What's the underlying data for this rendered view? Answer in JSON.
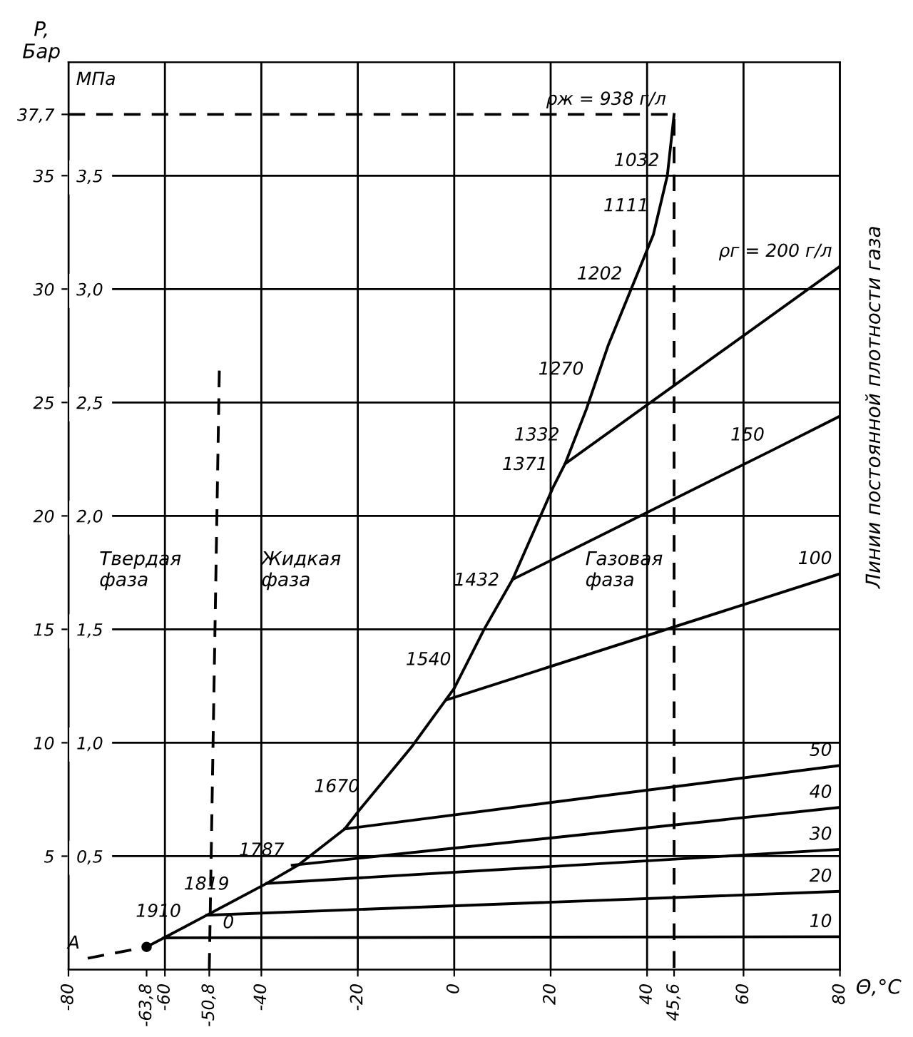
{
  "chart_data": {
    "type": "line",
    "xlabel": "Θ,°C",
    "ylabel": "P,\nБар",
    "y2label": "МПа",
    "xlim": [
      -80,
      80
    ],
    "ylim": [
      0,
      40
    ],
    "y2lim": [
      0,
      4.0
    ],
    "xticks": [
      -80,
      {
        "value": -63.8,
        "label": "-63,8"
      },
      -60,
      {
        "value": -50.8,
        "label": "-50,8"
      },
      -40,
      -20,
      0,
      20,
      40,
      {
        "value": 45.6,
        "label": "45,6"
      },
      60,
      80
    ],
    "yticks": [
      5,
      10,
      15,
      20,
      25,
      30,
      35,
      {
        "value": 37.7,
        "label": "37,7"
      }
    ],
    "y2ticks": [
      {
        "value": 0.5,
        "label": "0,5"
      },
      {
        "value": 1.0,
        "label": "1,0"
      },
      {
        "value": 1.5,
        "label": "1,5"
      },
      {
        "value": 2.0,
        "label": "2,0"
      },
      {
        "value": 2.5,
        "label": "2,5"
      },
      {
        "value": 3.0,
        "label": "3,0"
      },
      {
        "value": 3.5,
        "label": "3,5"
      }
    ],
    "grid": true,
    "series": [
      {
        "color": "#000000",
        "line_style": "solid",
        "x": [
          -63.8,
          -60.2,
          -51.3,
          -38.9,
          -32.4,
          -22.7,
          -19.8,
          -8.9,
          0,
          6.2,
          12.1,
          20.6,
          23,
          27.4,
          31.9,
          41.3,
          44.2,
          45.6
        ],
        "values": [
          1.0,
          1.4,
          2.4,
          3.8,
          4.6,
          6.2,
          7.0,
          9.8,
          12.4,
          15.0,
          17.2,
          21.3,
          22.3,
          24.7,
          27.5,
          32.4,
          35.0,
          37.7
        ]
      },
      {
        "color": "#000000",
        "line_style": "dashed",
        "x": [
          -76,
          -63.8
        ],
        "values": [
          0.5,
          1.0
        ]
      },
      {
        "type": "scatter",
        "marker": "circle",
        "color": "#000000",
        "x": [
          -63.8
        ],
        "values": [
          1.0
        ]
      },
      {
        "color": "#000000",
        "line_style": "dashed",
        "x": [
          -50.8,
          -48.7
        ],
        "values": [
          0,
          26.6
        ]
      },
      {
        "color": "#000000",
        "line_style": "dashed",
        "x": [
          -80,
          45.6,
          45.6
        ],
        "values": [
          37.7,
          37.7,
          0
        ]
      },
      {
        "color": "#000000",
        "line_style": "solid",
        "x": [
          -60.2,
          80
        ],
        "values": [
          1.4,
          1.45
        ]
      },
      {
        "color": "#000000",
        "line_style": "solid",
        "x": [
          -51.3,
          80
        ],
        "values": [
          2.4,
          3.45
        ]
      },
      {
        "color": "#000000",
        "line_style": "solid",
        "x": [
          -38.9,
          80
        ],
        "values": [
          3.8,
          5.3
        ]
      },
      {
        "color": "#000000",
        "line_style": "solid",
        "x": [
          -33.6,
          80
        ],
        "values": [
          4.6,
          7.15
        ]
      },
      {
        "color": "#000000",
        "line_style": "solid",
        "x": [
          -22.7,
          80
        ],
        "values": [
          6.2,
          9.0
        ]
      },
      {
        "color": "#000000",
        "line_style": "solid",
        "x": [
          -1.5,
          80
        ],
        "values": [
          11.9,
          17.45
        ]
      },
      {
        "color": "#000000",
        "line_style": "solid",
        "x": [
          12.1,
          66,
          80
        ],
        "values": [
          17.2,
          22.9,
          24.4
        ]
      },
      {
        "color": "#000000",
        "line_style": "solid",
        "x": [
          23,
          80
        ],
        "values": [
          22.3,
          31.0
        ]
      }
    ],
    "annotations": [
      "Линии постоянной плотности газа",
      "Твердая\nфаза",
      "Жидкая\nфаза",
      "Газовая\nфаза",
      {
        "text": "1910",
        "x": -55,
        "y": 1.9
      },
      {
        "text": "0",
        "x": -44,
        "y": 1.4
      },
      {
        "text": "1819",
        "x": -45,
        "y": 3.1
      },
      {
        "text": "1787",
        "x": -33.6,
        "y": 4.6
      },
      {
        "text": "1670",
        "x": -18,
        "y": 7.4
      },
      {
        "text": "1540",
        "x": 1,
        "y": 13.0
      },
      {
        "text": "1432",
        "x": 11,
        "y": 16.5
      },
      {
        "text": "1371",
        "x": 21,
        "y": 21.6
      },
      {
        "text": "1332",
        "x": 23.5,
        "y": 22.9
      },
      {
        "text": "1270",
        "x": 28.5,
        "y": 25.8
      },
      {
        "text": "1202",
        "x": 36.5,
        "y": 30.0
      },
      {
        "text": "1111",
        "x": 42,
        "y": 33.0
      },
      {
        "text": "1032",
        "x": 44.2,
        "y": 35.0
      },
      {
        "text": "ρж = 938 г/л",
        "x": 45.6,
        "y": 37.7
      },
      {
        "text": "ρг = 200 г/л",
        "x": 80,
        "y": 31.0
      },
      {
        "text": "150",
        "x": 66,
        "y": 22.9
      },
      {
        "text": "100",
        "x": 80,
        "y": 17.45
      },
      {
        "text": "50",
        "x": 80,
        "y": 9.0
      },
      {
        "text": "40",
        "x": 80,
        "y": 7.15
      },
      {
        "text": "30",
        "x": 80,
        "y": 5.3
      },
      {
        "text": "20",
        "x": 80,
        "y": 3.45
      },
      {
        "text": "10",
        "x": 80,
        "y": 1.45
      },
      {
        "text": "A",
        "x": -76,
        "y": 0.5
      }
    ]
  }
}
